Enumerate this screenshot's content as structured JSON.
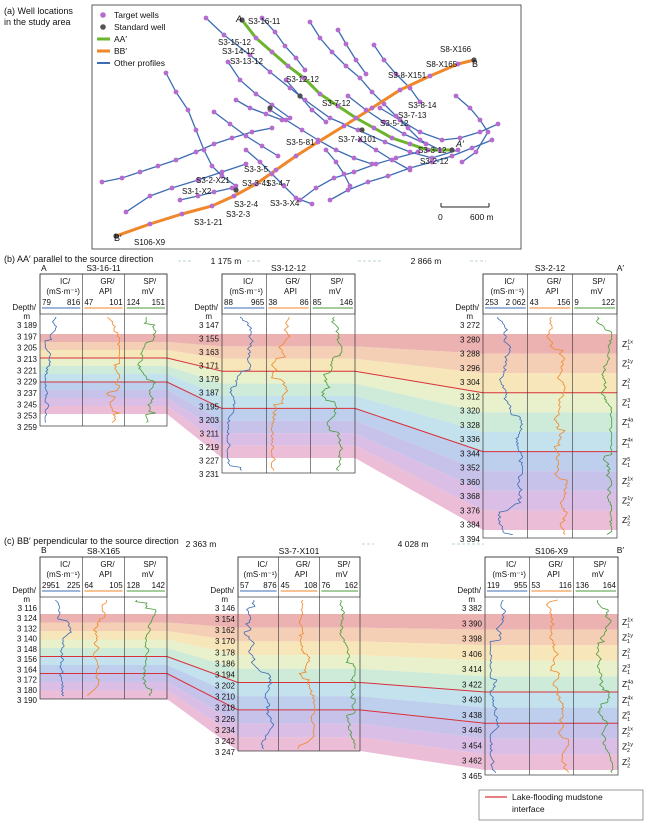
{
  "panel_a": {
    "title_lines": [
      "(a) Well locations",
      "in the study area"
    ],
    "legend": [
      {
        "label": "Target wells",
        "kind": "dot",
        "color": "#b46ccf"
      },
      {
        "label": "Standard well",
        "kind": "dot",
        "color": "#555555"
      },
      {
        "label": "AA′",
        "kind": "line",
        "color": "#6bb42d"
      },
      {
        "label": "BB′",
        "kind": "line",
        "color": "#f0872a"
      },
      {
        "label": "Other profiles",
        "kind": "line",
        "color": "#3d6cb3"
      }
    ],
    "endpoint_labels": {
      "a_start": "A",
      "a_end": "A′",
      "b_start": "B′",
      "b_end": "B"
    },
    "well_labels": [
      "S3-16-11",
      "S3-15-12",
      "S3-14-12",
      "S3-13-12",
      "S3-12-12",
      "S8-X166",
      "S8-X165",
      "S3-8-X151",
      "S3-7-12",
      "S3-8-14",
      "S3-7-13",
      "S3-5-12",
      "S3-3-12",
      "S3-5-81",
      "S3-7-X101",
      "S3-2-12",
      "S3-3-5",
      "S3-4-7",
      "S3-3-41",
      "S3-2-X21",
      "S3-1-X2",
      "S3-2-4",
      "S3-3-X4",
      "S3-2-3",
      "S3-1-21",
      "S106-X9"
    ],
    "scale_ticks": [
      "0",
      "600 m"
    ]
  },
  "panel_b": {
    "title": "(b) AA′ parallel to the source direction",
    "end_left": "A",
    "end_right": "A′",
    "wells": [
      {
        "name": "S3-16-11",
        "ranges": [
          [
            "79",
            "816"
          ],
          [
            "47",
            "101"
          ],
          [
            "124",
            "151"
          ]
        ],
        "depths": [
          "3 189",
          "3 197",
          "3 205",
          "3 213",
          "3 221",
          "3 229",
          "3 237",
          "3 245",
          "3 253",
          "3 259"
        ]
      },
      {
        "name": "S3-12-12",
        "ranges": [
          [
            "88",
            "965"
          ],
          [
            "38",
            "86"
          ],
          [
            "85",
            "146"
          ]
        ],
        "depths": [
          "3 147",
          "3 155",
          "3 163",
          "3 171",
          "3 179",
          "3 187",
          "3 195",
          "3 203",
          "3 211",
          "3 219",
          "3 227",
          "3 231"
        ]
      },
      {
        "name": "S3-2-12",
        "ranges": [
          [
            "253",
            "2 062"
          ],
          [
            "43",
            "156"
          ],
          [
            "9",
            "122"
          ]
        ],
        "depths": [
          "3 272",
          "3 280",
          "3 288",
          "3 296",
          "3 304",
          "3 312",
          "3 320",
          "3 328",
          "3 336",
          "3 344",
          "3 352",
          "3 360",
          "3 368",
          "3 376",
          "3 384",
          "3 394"
        ]
      }
    ],
    "gaps": [
      "1 175 m",
      "2 866 m"
    ]
  },
  "panel_c": {
    "title": "(c) BB′ perpendicular to the source direction",
    "end_left": "B",
    "end_right": "B′",
    "wells": [
      {
        "name": "S8-X165",
        "ranges": [
          [
            "2951",
            "225"
          ],
          [
            "64",
            "105"
          ],
          [
            "128",
            "142"
          ]
        ],
        "depths": [
          "3 116",
          "3 124",
          "3 132",
          "3 140",
          "3 148",
          "3 156",
          "3 164",
          "3 172",
          "3 180",
          "3 190"
        ]
      },
      {
        "name": "S3-7-X101",
        "ranges": [
          [
            "57",
            "876"
          ],
          [
            "45",
            "108"
          ],
          [
            "76",
            "162"
          ]
        ],
        "depths": [
          "3 146",
          "3 154",
          "3 162",
          "3 170",
          "3 178",
          "3 186",
          "3 194",
          "3 202",
          "3 210",
          "3 218",
          "3 226",
          "3 234",
          "3 242",
          "3 247"
        ]
      },
      {
        "name": "S106-X9",
        "ranges": [
          [
            "119",
            "955"
          ],
          [
            "53",
            "116"
          ],
          [
            "136",
            "164"
          ]
        ],
        "depths": [
          "3 382",
          "3 390",
          "3 398",
          "3 406",
          "3 414",
          "3 422",
          "3 430",
          "3 438",
          "3 446",
          "3 454",
          "3 462",
          "3 465"
        ]
      }
    ],
    "gaps": [
      "2 363 m",
      "4 028 m"
    ]
  },
  "log_columns": [
    {
      "name": "IC",
      "unit": "(mS·m⁻¹)",
      "color": "#3d6cb3"
    },
    {
      "name": "GR",
      "unit": "API",
      "color": "#f0872a"
    },
    {
      "name": "SP",
      "unit": "mV",
      "color": "#4a9a3a"
    }
  ],
  "depth_label": [
    "Depth/",
    "m"
  ],
  "zone_labels": [
    {
      "base": "Z",
      "sub": "1",
      "sup": "1x"
    },
    {
      "base": "Z",
      "sub": "1",
      "sup": "1y"
    },
    {
      "base": "Z",
      "sub": "1",
      "sup": "2"
    },
    {
      "base": "Z",
      "sub": "1",
      "sup": "3"
    },
    {
      "base": "Z",
      "sub": "1",
      "sup": "4a"
    },
    {
      "base": "Z",
      "sub": "1",
      "sup": "4x"
    },
    {
      "base": "Z",
      "sub": "1",
      "sup": "5"
    },
    {
      "base": "Z",
      "sub": "2",
      "sup": "1x"
    },
    {
      "base": "Z",
      "sub": "2",
      "sup": "1y"
    },
    {
      "base": "Z",
      "sub": "2",
      "sup": "2"
    }
  ],
  "band_colors": [
    "#e9a4a4",
    "#f2c6a8",
    "#f6e2ae",
    "#e4eec2",
    "#c6e6d2",
    "#b9ddea",
    "#b3c6ea",
    "#bdb7e6",
    "#d4b3e2",
    "#e9b1cf"
  ],
  "legend_c": "Lake-flooding mudstone interface",
  "interface_color": "#d9303a"
}
